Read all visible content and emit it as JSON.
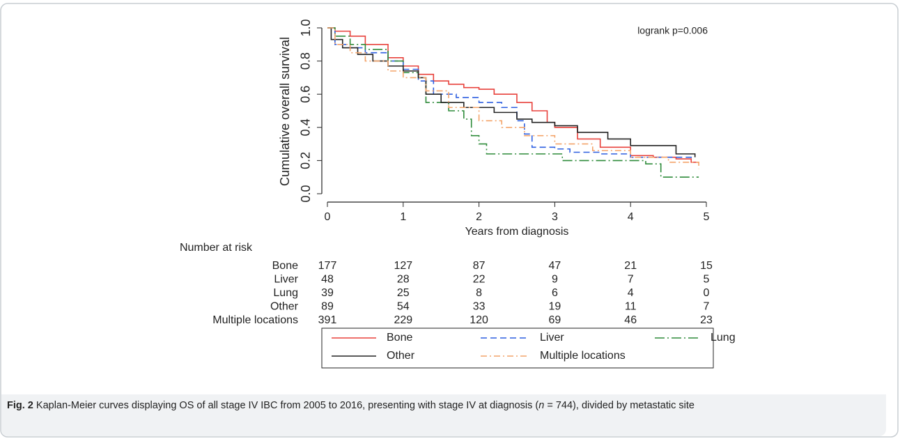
{
  "chart_data": {
    "type": "line",
    "step": true,
    "ylabel": "Cumulative overall survival",
    "xlabel": "Years from diagnosis",
    "annotation": "logrank p=0.006",
    "xlim": [
      0,
      5
    ],
    "xticks": [
      0,
      1,
      2,
      3,
      4,
      5
    ],
    "ylim": [
      0,
      1
    ],
    "yticks": [
      {
        "value": 0,
        "label": "0.0"
      },
      {
        "value": 0.2,
        "label": "0.2"
      },
      {
        "value": 0.4,
        "label": "0.4"
      },
      {
        "value": 0.6,
        "label": "0.6"
      },
      {
        "value": 0.8,
        "label": "0.8"
      },
      {
        "value": 1,
        "label": "1.0"
      }
    ],
    "series": [
      {
        "name": "Bone",
        "color": "#e8413b",
        "dash": "solid",
        "x": [
          0,
          0.1,
          0.3,
          0.5,
          0.8,
          1.0,
          1.2,
          1.4,
          1.6,
          1.8,
          2.0,
          2.2,
          2.5,
          2.7,
          2.9,
          3.0,
          3.3,
          3.6,
          4.0,
          4.3,
          4.6,
          4.8,
          4.9
        ],
        "values": [
          1.0,
          0.98,
          0.95,
          0.9,
          0.82,
          0.77,
          0.72,
          0.68,
          0.66,
          0.64,
          0.63,
          0.6,
          0.55,
          0.5,
          0.43,
          0.4,
          0.33,
          0.28,
          0.23,
          0.22,
          0.21,
          0.19,
          0.19
        ]
      },
      {
        "name": "Liver",
        "color": "#2d5fe0",
        "dash": "dash",
        "x": [
          0,
          0.1,
          0.3,
          0.5,
          0.8,
          1.0,
          1.2,
          1.4,
          1.7,
          2.0,
          2.3,
          2.5,
          2.6,
          2.7,
          3.0,
          3.2,
          3.6,
          4.0,
          4.5,
          4.8
        ],
        "values": [
          1.0,
          0.9,
          0.88,
          0.85,
          0.8,
          0.75,
          0.68,
          0.6,
          0.58,
          0.55,
          0.52,
          0.44,
          0.36,
          0.28,
          0.27,
          0.25,
          0.24,
          0.22,
          0.22,
          0.2
        ]
      },
      {
        "name": "Lung",
        "color": "#2e8b3a",
        "dash": "longdashdot",
        "x": [
          0,
          0.1,
          0.3,
          0.5,
          0.8,
          1.0,
          1.2,
          1.3,
          1.6,
          1.8,
          1.9,
          2.0,
          2.1,
          2.5,
          3.0,
          3.1,
          4.0,
          4.2,
          4.4,
          4.9
        ],
        "values": [
          1.0,
          0.95,
          0.9,
          0.87,
          0.8,
          0.73,
          0.7,
          0.55,
          0.5,
          0.45,
          0.35,
          0.3,
          0.24,
          0.24,
          0.24,
          0.2,
          0.2,
          0.18,
          0.1,
          0.1
        ]
      },
      {
        "name": "Other",
        "color": "#222222",
        "dash": "solid",
        "x": [
          0,
          0.05,
          0.2,
          0.4,
          0.6,
          0.8,
          1.0,
          1.2,
          1.3,
          1.5,
          1.8,
          2.2,
          2.5,
          2.7,
          3.0,
          3.3,
          3.7,
          4.0,
          4.3,
          4.6,
          4.85
        ],
        "values": [
          1.0,
          0.93,
          0.88,
          0.84,
          0.8,
          0.77,
          0.74,
          0.7,
          0.6,
          0.55,
          0.52,
          0.49,
          0.45,
          0.43,
          0.41,
          0.37,
          0.33,
          0.29,
          0.29,
          0.24,
          0.22
        ]
      },
      {
        "name": "Multiple locations",
        "color": "#f4a46a",
        "dash": "dashdot",
        "x": [
          0,
          0.1,
          0.3,
          0.5,
          0.8,
          1.0,
          1.3,
          1.6,
          2.0,
          2.3,
          2.6,
          3.0,
          3.5,
          4.0,
          4.5,
          4.9
        ],
        "values": [
          1.0,
          0.9,
          0.85,
          0.8,
          0.74,
          0.7,
          0.62,
          0.52,
          0.44,
          0.4,
          0.35,
          0.3,
          0.26,
          0.22,
          0.19,
          0.15
        ]
      }
    ],
    "risk_table": {
      "title": "Number at risk",
      "rows": [
        {
          "name": "Bone",
          "values": [
            177,
            127,
            87,
            47,
            21,
            15
          ]
        },
        {
          "name": "Liver",
          "values": [
            48,
            28,
            22,
            9,
            7,
            5
          ]
        },
        {
          "name": "Lung",
          "values": [
            39,
            25,
            8,
            6,
            4,
            0
          ]
        },
        {
          "name": "Other",
          "values": [
            89,
            54,
            33,
            19,
            11,
            7
          ]
        },
        {
          "name": "Multiple locations",
          "values": [
            391,
            229,
            120,
            69,
            46,
            23
          ]
        }
      ]
    }
  },
  "caption": {
    "label": "Fig. 2",
    "parts": [
      " Kaplan-Meier curves displaying OS of all stage IV IBC from 2005 to 2016, presenting with stage IV at diagnosis (",
      "n",
      " = 744), divided by metastatic site"
    ]
  }
}
